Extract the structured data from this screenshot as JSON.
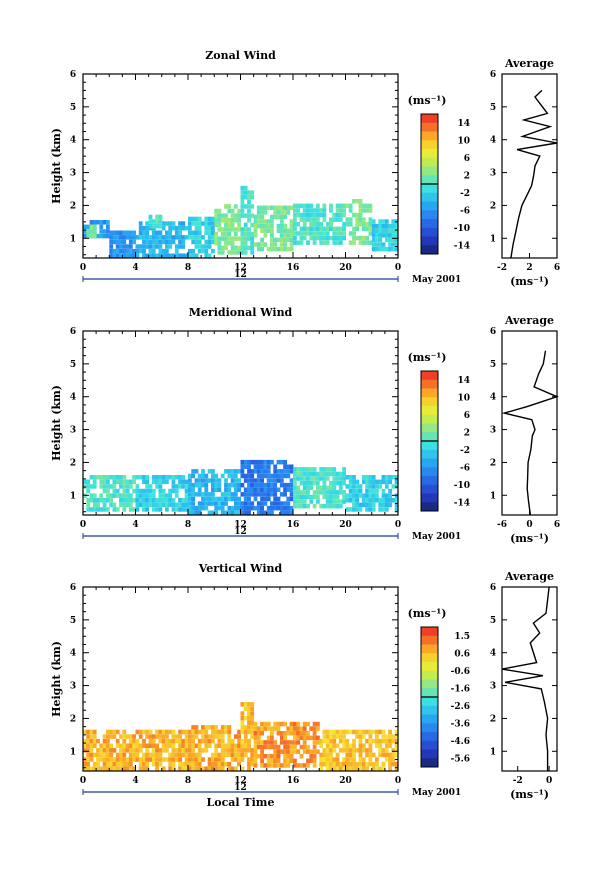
{
  "chart_data": [
    {
      "type": "heatmap",
      "panel": "zonal",
      "title": "Zonal Wind",
      "ylabel": "Height (km)",
      "xlabel": "",
      "xlim": [
        0,
        24
      ],
      "ylim": [
        0.4,
        6
      ],
      "x_ticks": [
        "0",
        "4",
        "8",
        "12",
        "16",
        "20",
        "0"
      ],
      "y_ticks": [
        "1",
        "2",
        "3",
        "4",
        "5",
        "6"
      ],
      "date_label": "12",
      "month_label": "May 2001",
      "colorbar": {
        "unit": "(ms⁻¹)",
        "labels": [
          "14",
          "10",
          "6",
          "2",
          "-2",
          "-6",
          "-10",
          "-14"
        ],
        "min": -16,
        "max": 16
      },
      "cells": [
        [
          0,
          2,
          1.0,
          1.5,
          -6
        ],
        [
          2,
          4,
          0.4,
          1.2,
          -6
        ],
        [
          4,
          8,
          0.4,
          1.5,
          -4
        ],
        [
          8,
          10,
          0.4,
          1.6,
          -2
        ],
        [
          10,
          12,
          0.5,
          2.0,
          2
        ],
        [
          12,
          13,
          0.5,
          2.5,
          0
        ],
        [
          13,
          16,
          0.6,
          1.9,
          2
        ],
        [
          16,
          20,
          0.8,
          2.0,
          0
        ],
        [
          20,
          22,
          0.8,
          2.1,
          2
        ],
        [
          22,
          24,
          0.6,
          1.5,
          -2
        ],
        [
          0,
          1,
          1.0,
          1.3,
          2
        ],
        [
          5,
          6,
          1.3,
          1.6,
          0
        ]
      ],
      "average_profile": {
        "title": "Average",
        "xlabel": "(ms⁻¹)",
        "xlim": [
          -2,
          6
        ],
        "x_ticks": [
          "-2",
          "2",
          "6"
        ],
        "y_ticks": [
          "1",
          "2",
          "3",
          "4",
          "5",
          "6"
        ],
        "points": [
          [
            -0.7,
            0.4
          ],
          [
            -0.4,
            0.8
          ],
          [
            0.0,
            1.2
          ],
          [
            0.4,
            1.6
          ],
          [
            0.9,
            2.0
          ],
          [
            1.6,
            2.3
          ],
          [
            2.3,
            2.6
          ],
          [
            2.6,
            2.9
          ],
          [
            2.8,
            3.2
          ],
          [
            3.5,
            3.5
          ],
          [
            0.2,
            3.7
          ],
          [
            6.0,
            3.9
          ],
          [
            1.0,
            4.1
          ],
          [
            5.0,
            4.4
          ],
          [
            1.2,
            4.6
          ],
          [
            4.6,
            4.8
          ],
          [
            2.8,
            5.3
          ],
          [
            3.8,
            5.5
          ]
        ]
      }
    },
    {
      "type": "heatmap",
      "panel": "meridional",
      "title": "Meridional Wind",
      "ylabel": "Height (km)",
      "xlabel": "",
      "xlim": [
        0,
        24
      ],
      "ylim": [
        0.4,
        6
      ],
      "x_ticks": [
        "0",
        "4",
        "8",
        "12",
        "16",
        "20",
        "0"
      ],
      "y_ticks": [
        "1",
        "2",
        "3",
        "4",
        "5",
        "6"
      ],
      "date_label": "12",
      "month_label": "May 2001",
      "colorbar": {
        "unit": "(ms⁻¹)",
        "labels": [
          "14",
          "10",
          "6",
          "2",
          "-2",
          "-6",
          "-10",
          "-14"
        ],
        "min": -16,
        "max": 16
      },
      "cells": [
        [
          0,
          4,
          0.5,
          1.5,
          0
        ],
        [
          4,
          8,
          0.5,
          1.6,
          -2
        ],
        [
          8,
          12,
          0.4,
          1.8,
          -4
        ],
        [
          12,
          16,
          0.4,
          2.0,
          -8
        ],
        [
          16,
          20,
          0.6,
          1.8,
          0
        ],
        [
          20,
          24,
          0.5,
          1.6,
          -2
        ]
      ],
      "average_profile": {
        "title": "Average",
        "xlabel": "(ms⁻¹)",
        "xlim": [
          -6,
          6
        ],
        "x_ticks": [
          "-6",
          "0",
          "6"
        ],
        "y_ticks": [
          "1",
          "2",
          "3",
          "4",
          "5",
          "6"
        ],
        "points": [
          [
            0.2,
            0.4
          ],
          [
            -0.2,
            0.8
          ],
          [
            -0.5,
            1.2
          ],
          [
            -0.4,
            1.6
          ],
          [
            -0.3,
            2.0
          ],
          [
            0.3,
            2.4
          ],
          [
            0.6,
            2.8
          ],
          [
            1.2,
            3.0
          ],
          [
            0.5,
            3.3
          ],
          [
            -5.5,
            3.5
          ],
          [
            -0.5,
            3.7
          ],
          [
            6.0,
            4.0
          ],
          [
            1.0,
            4.3
          ],
          [
            2.0,
            4.7
          ],
          [
            3.0,
            5.0
          ],
          [
            3.5,
            5.4
          ]
        ]
      }
    },
    {
      "type": "heatmap",
      "panel": "vertical",
      "title": "Vertical Wind",
      "ylabel": "Height (km)",
      "xlabel": "Local Time",
      "xlim": [
        0,
        24
      ],
      "ylim": [
        0.4,
        6
      ],
      "x_ticks": [
        "0",
        "4",
        "8",
        "12",
        "16",
        "20",
        "0"
      ],
      "y_ticks": [
        "1",
        "2",
        "3",
        "4",
        "5",
        "6"
      ],
      "date_label": "12",
      "month_label": "May 2001",
      "colorbar": {
        "unit": "(ms⁻¹)",
        "labels": [
          "1.5",
          "0.6",
          "-0.6",
          "-1.6",
          "-2.6",
          "-3.6",
          "-4.6",
          "-5.6"
        ],
        "min": -6.6,
        "max": 2.0
      },
      "cells": [
        [
          0,
          8,
          0.4,
          1.6,
          0.5
        ],
        [
          8,
          12,
          0.4,
          1.7,
          0.6
        ],
        [
          12,
          13,
          0.4,
          2.5,
          0.4
        ],
        [
          13,
          18,
          0.5,
          1.8,
          0.8
        ],
        [
          18,
          24,
          0.4,
          1.6,
          0.3
        ]
      ],
      "average_profile": {
        "title": "Average",
        "xlabel": "(ms⁻¹)",
        "xlim": [
          -3,
          0.5
        ],
        "x_ticks": [
          "-2",
          "0"
        ],
        "y_ticks": [
          "1",
          "2",
          "3",
          "4",
          "5",
          "6"
        ],
        "points": [
          [
            -0.1,
            0.4
          ],
          [
            -0.1,
            1.0
          ],
          [
            -0.2,
            1.5
          ],
          [
            -0.1,
            2.0
          ],
          [
            -0.3,
            2.5
          ],
          [
            -0.5,
            2.9
          ],
          [
            -2.8,
            3.1
          ],
          [
            -0.4,
            3.3
          ],
          [
            -3.0,
            3.5
          ],
          [
            -0.8,
            3.7
          ],
          [
            -1.2,
            4.3
          ],
          [
            -0.6,
            4.6
          ],
          [
            -1.0,
            4.9
          ],
          [
            -0.2,
            5.2
          ],
          [
            -0.1,
            5.6
          ],
          [
            0.0,
            6.0
          ]
        ]
      }
    }
  ]
}
